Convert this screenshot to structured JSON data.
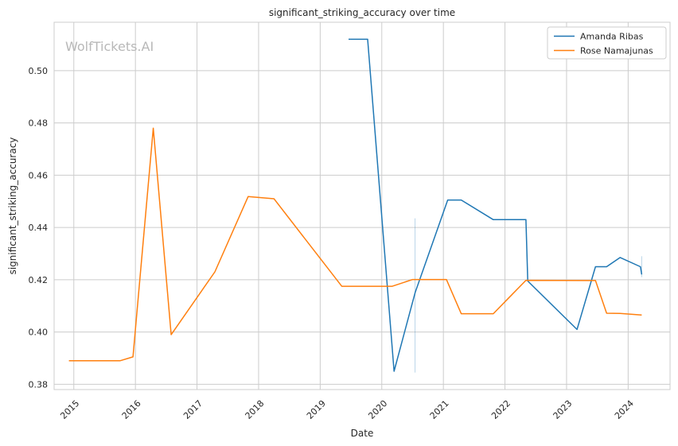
{
  "chart_data": {
    "type": "line",
    "title": "significant_striking_accuracy over time",
    "xlabel": "Date",
    "ylabel": "significant_striking_accuracy",
    "watermark": "WolfTickets.AI",
    "grid": true,
    "legend_position": "top-right",
    "xlim": [
      2014.68,
      2024.68
    ],
    "ylim": [
      0.378,
      0.5185
    ],
    "x_ticks": [
      2015,
      2016,
      2017,
      2018,
      2019,
      2020,
      2021,
      2022,
      2023,
      2024
    ],
    "x_tick_labels": [
      "2015",
      "2016",
      "2017",
      "2018",
      "2019",
      "2020",
      "2021",
      "2022",
      "2023",
      "2024"
    ],
    "y_ticks": [
      0.38,
      0.4,
      0.42,
      0.44,
      0.46,
      0.48,
      0.5
    ],
    "y_tick_labels": [
      "0.38",
      "0.40",
      "0.42",
      "0.44",
      "0.46",
      "0.48",
      "0.50"
    ],
    "series": [
      {
        "name": "Amanda Ribas",
        "color": "#1f77b4",
        "x": [
          2019.46,
          2019.77,
          2020.2,
          2020.54,
          2021.07,
          2021.29,
          2021.81,
          2022.34,
          2022.37,
          2023.17,
          2023.47,
          2023.65,
          2023.87,
          2024.2,
          2024.22
        ],
        "y": [
          0.512,
          0.512,
          0.385,
          0.415,
          0.4505,
          0.4505,
          0.443,
          0.443,
          0.4195,
          0.401,
          0.425,
          0.425,
          0.4285,
          0.425,
          0.422
        ]
      },
      {
        "name": "Rose Namajunas",
        "color": "#ff7f0e",
        "x": [
          2014.92,
          2015.75,
          2015.96,
          2016.29,
          2016.58,
          2017.29,
          2017.83,
          2018.25,
          2019.35,
          2020.17,
          2020.5,
          2021.05,
          2021.29,
          2021.81,
          2022.34,
          2023.47,
          2023.65,
          2023.87,
          2024.22
        ],
        "y": [
          0.389,
          0.389,
          0.3905,
          0.478,
          0.399,
          0.423,
          0.4518,
          0.451,
          0.4175,
          0.4175,
          0.4201,
          0.4201,
          0.407,
          0.407,
          0.4198,
          0.4197,
          0.4072,
          0.4071,
          0.4065
        ]
      }
    ],
    "band_lines": [
      {
        "color": "#1f77b4",
        "x": 2020.54,
        "y_low": 0.3845,
        "y_high": 0.4435
      },
      {
        "color": "#1f77b4",
        "x": 2024.22,
        "y_low": 0.421,
        "y_high": 0.429
      }
    ]
  }
}
